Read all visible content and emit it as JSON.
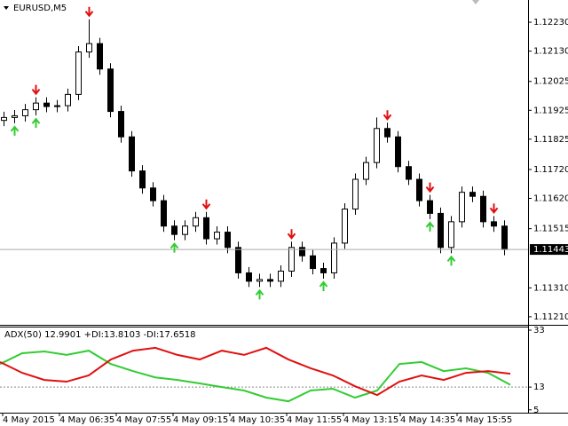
{
  "chart_data": [
    {
      "type": "candlestick",
      "title": "EURUSD,M5",
      "open": [
        1.1189,
        1.119,
        1.11906,
        1.11927,
        1.1195,
        1.11938,
        1.11941,
        1.1198,
        1.12127,
        1.12156,
        1.12068,
        1.11921,
        1.11833,
        1.11715,
        1.11656,
        1.11612,
        1.11524,
        1.11495,
        1.11524,
        1.11553,
        1.1148,
        1.11503,
        1.1145,
        1.11362,
        1.11333,
        1.11339,
        1.11333,
        1.11368,
        1.1145,
        1.11421,
        1.11377,
        1.11362,
        1.11465,
        1.11583,
        1.11686,
        1.11744,
        1.11862,
        1.11833,
        1.1173,
        1.11686,
        1.11612,
        1.11568,
        1.1145,
        1.11539,
        1.11641,
        1.11627,
        1.11539,
        1.11524
      ],
      "high": [
        1.1192,
        1.11926,
        1.11947,
        1.1197,
        1.1197,
        1.11961,
        1.12,
        1.12147,
        1.1224,
        1.12176,
        1.12088,
        1.11941,
        1.11853,
        1.11735,
        1.11676,
        1.11632,
        1.11544,
        1.11544,
        1.11573,
        1.11573,
        1.11523,
        1.11523,
        1.1147,
        1.11382,
        1.11359,
        1.11359,
        1.11388,
        1.1147,
        1.1147,
        1.11441,
        1.11397,
        1.11485,
        1.11603,
        1.11706,
        1.11764,
        1.119,
        1.11882,
        1.11853,
        1.1175,
        1.11706,
        1.11632,
        1.11588,
        1.11559,
        1.11661,
        1.11661,
        1.11647,
        1.11559,
        1.11544
      ],
      "low": [
        1.1187,
        1.1188,
        1.11886,
        1.11907,
        1.11918,
        1.11918,
        1.11921,
        1.1196,
        1.12107,
        1.12048,
        1.11901,
        1.11813,
        1.11695,
        1.11636,
        1.11592,
        1.11504,
        1.11475,
        1.11475,
        1.11504,
        1.1146,
        1.1146,
        1.1143,
        1.11342,
        1.11313,
        1.11313,
        1.11313,
        1.11313,
        1.11348,
        1.11401,
        1.11357,
        1.11342,
        1.11342,
        1.11445,
        1.11563,
        1.11666,
        1.11724,
        1.11813,
        1.1171,
        1.11666,
        1.11592,
        1.11548,
        1.1143,
        1.1143,
        1.11519,
        1.11607,
        1.11519,
        1.11504,
        1.11423
      ],
      "close": [
        1.119,
        1.11906,
        1.11927,
        1.1195,
        1.11938,
        1.11941,
        1.1198,
        1.12127,
        1.12156,
        1.12068,
        1.11921,
        1.11833,
        1.11715,
        1.11656,
        1.11612,
        1.11524,
        1.11495,
        1.11524,
        1.11553,
        1.1148,
        1.11503,
        1.1145,
        1.11362,
        1.11333,
        1.11339,
        1.11333,
        1.11368,
        1.1145,
        1.11421,
        1.11377,
        1.11362,
        1.11465,
        1.11583,
        1.11686,
        1.11744,
        1.11862,
        1.11833,
        1.1173,
        1.11686,
        1.11612,
        1.11568,
        1.1145,
        1.11539,
        1.11641,
        1.11627,
        1.11539,
        1.11524,
        1.11443
      ],
      "down_arrows": [
        3,
        8,
        19,
        27,
        36,
        40,
        46
      ],
      "up_arrows": [
        1,
        3,
        16,
        24,
        30,
        40,
        42
      ],
      "ylim": [
        1.11182,
        1.12307
      ],
      "yticks": [
        {
          "value": 1.1223,
          "label": "1.12230"
        },
        {
          "value": 1.1213,
          "label": "1.12130"
        },
        1.12025,
        1.11925,
        1.11825,
        {
          "value": 1.1172,
          "label": "1.11720"
        },
        {
          "value": 1.1162,
          "label": "1.11620"
        },
        1.11515,
        {
          "value": 1.1131,
          "label": "1.11310"
        },
        {
          "value": 1.1121,
          "label": "1.11210"
        }
      ],
      "x_labels": [
        "4 May 2015",
        "4 May 06:35",
        "4 May 07:55",
        "4 May 09:15",
        "4 May 10:35",
        "4 May 11:55",
        "4 May 13:15",
        "4 May 14:35",
        "4 May 15:55"
      ]
    },
    {
      "type": "line",
      "title": "ADX(50) 12.9901 +DI:13.8103 -DI:17.6518",
      "series": [
        {
          "name": "+DI",
          "color": "#33cc33",
          "values": [
            21.1,
            24.9,
            25.5,
            24.3,
            25.8,
            21.1,
            18.6,
            16.4,
            15.5,
            14.3,
            13.0,
            11.8,
            9.3,
            8.0,
            11.8,
            12.4,
            9.3,
            11.8,
            21.1,
            21.8,
            18.6,
            19.6,
            18.0,
            13.8
          ]
        },
        {
          "name": "-DI",
          "color": "#e01010",
          "values": [
            21.8,
            18.0,
            15.5,
            14.9,
            17.1,
            22.7,
            25.8,
            26.8,
            24.3,
            22.7,
            25.8,
            24.3,
            26.8,
            22.7,
            19.6,
            17.1,
            13.3,
            10.2,
            14.9,
            17.1,
            15.5,
            18.0,
            18.6,
            17.7
          ]
        }
      ],
      "ylim": [
        4,
        34.25
      ],
      "yticks": [
        5,
        13,
        33
      ]
    }
  ]
}
